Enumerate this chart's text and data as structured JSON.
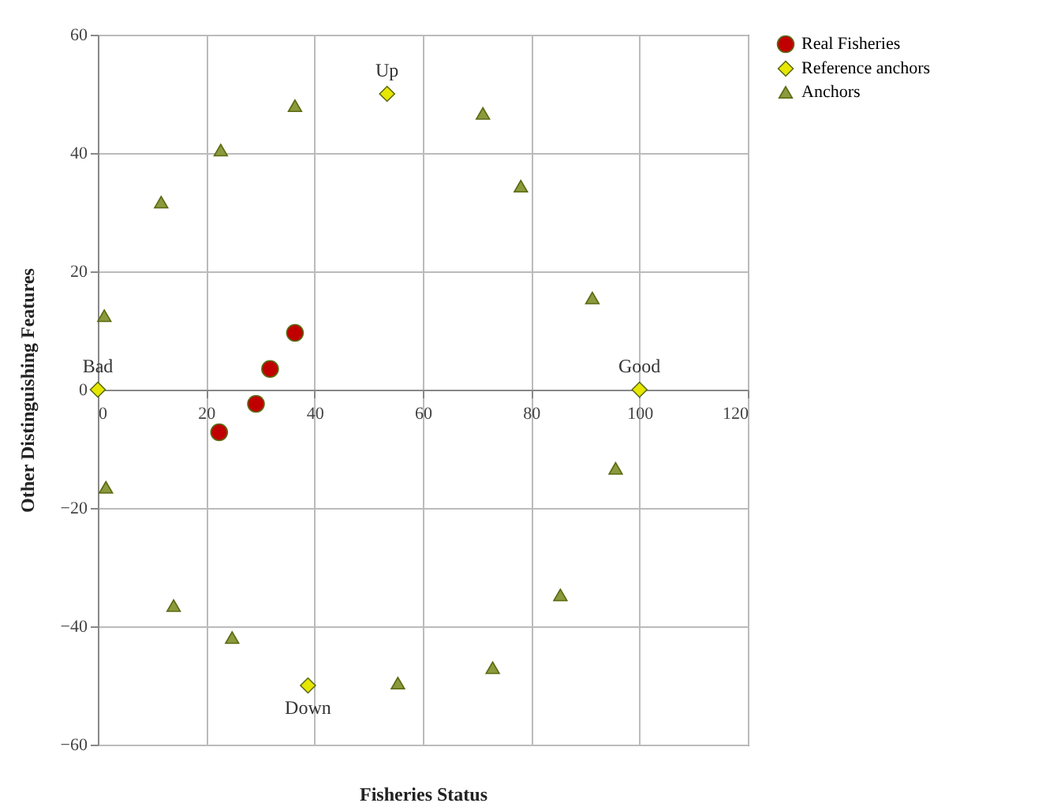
{
  "chart_data": {
    "type": "scatter",
    "xlabel": "Fisheries Status",
    "ylabel": "Other Distinguishing Features",
    "xlim": [
      0,
      120
    ],
    "ylim": [
      -60,
      60
    ],
    "xticks": [
      0,
      20,
      40,
      60,
      80,
      100,
      120
    ],
    "yticks": [
      -60,
      -40,
      -20,
      0,
      20,
      40,
      60
    ],
    "grid": true,
    "legend": "right",
    "series": [
      {
        "name": "Real Fisheries",
        "color": "#c00000",
        "marker": "circle",
        "x": [
          22.4,
          29.2,
          31.8,
          36.4
        ],
        "values": [
          -7.2,
          -2.4,
          3.5,
          9.6
        ]
      },
      {
        "name": "Reference anchors",
        "color": "#e6e600",
        "marker": "diamond",
        "x": [
          0,
          53.4,
          100,
          38.8
        ],
        "values": [
          0,
          50,
          0,
          -50
        ]
      },
      {
        "name": "Anchors",
        "color": "#8a9a3c",
        "marker": "triangle",
        "x": [
          1.2,
          11.7,
          22.7,
          36.4,
          71.1,
          78.1,
          91.3,
          95.6,
          85.4,
          72.9,
          55.4,
          24.8,
          14,
          1.5
        ],
        "values": [
          12.5,
          31.7,
          40.5,
          48,
          46.7,
          34.4,
          15.5,
          -13.3,
          -34.7,
          -47,
          -49.6,
          -41.9,
          -36.5,
          -16.5
        ]
      }
    ],
    "annotations": [
      {
        "text": "Up",
        "x": 53.4,
        "y": 50
      },
      {
        "text": "Down",
        "x": 38.8,
        "y": -50
      },
      {
        "text": "Bad",
        "x": 0,
        "y": 0
      },
      {
        "text": "Good",
        "x": 100,
        "y": 0
      }
    ]
  }
}
